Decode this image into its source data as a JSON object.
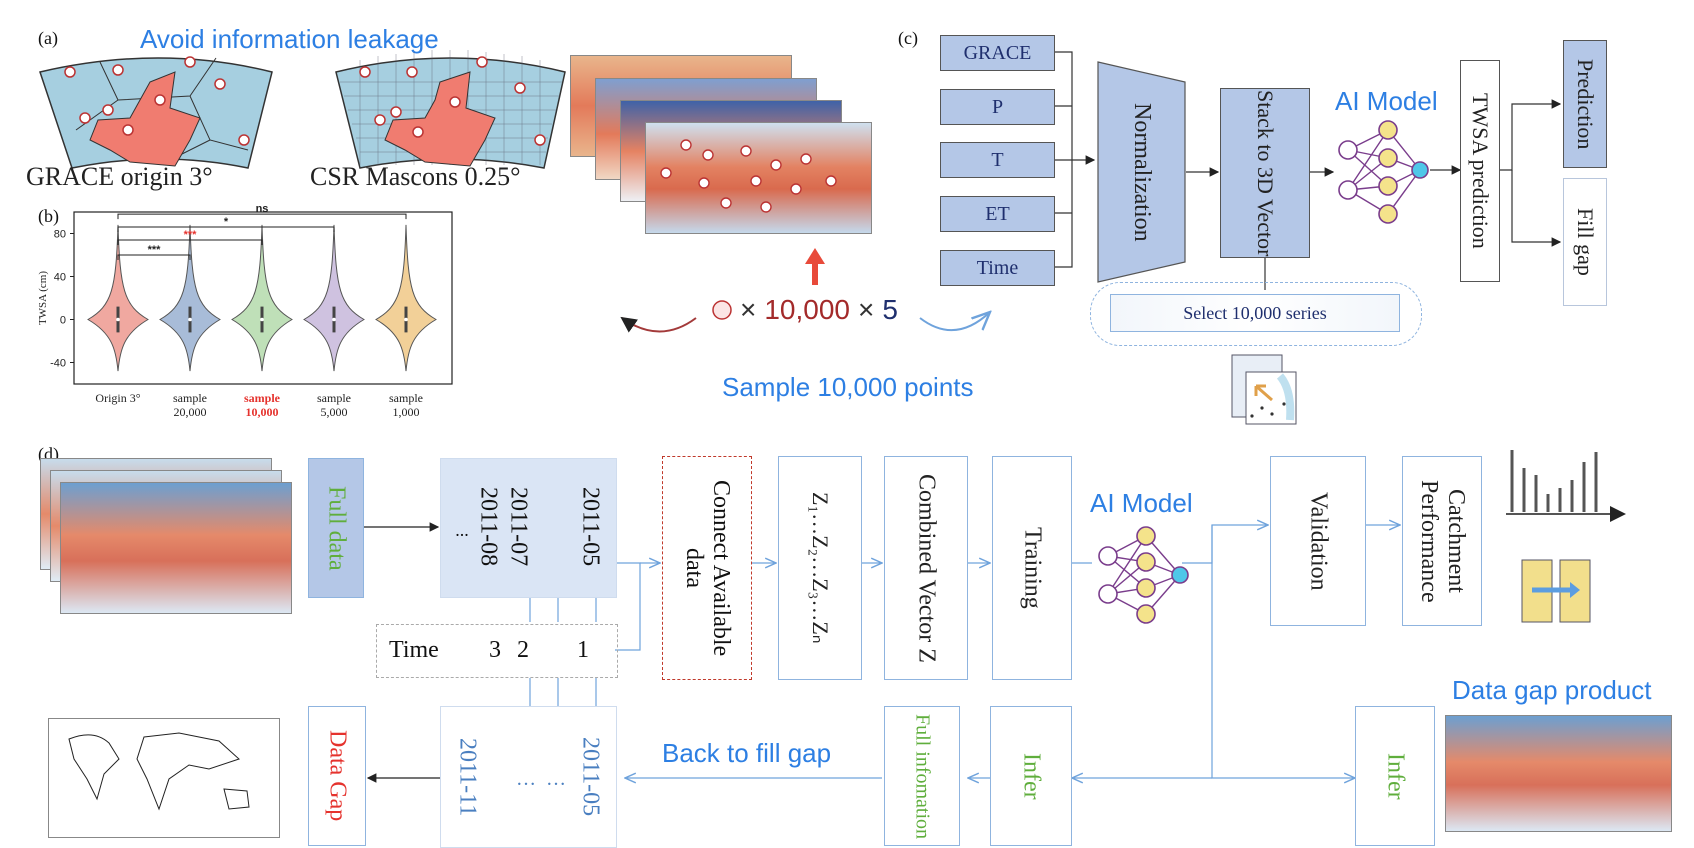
{
  "panel_a": {
    "letter": "(a)",
    "title": "Avoid information leakage",
    "left_label": "GRACE origin 3°",
    "right_label": "CSR Mascons 0.25°"
  },
  "panel_b": {
    "letter": "(b)",
    "chart_data": {
      "type": "violin",
      "ylabel": "TWSA (cm)",
      "yticks": [
        -40,
        0,
        40,
        80
      ],
      "categories": [
        "Origin 3°",
        "sample 20,000",
        "sample 10,000",
        "sample 5,000",
        "sample 1,000"
      ],
      "category_lines": [
        [
          "Origin 3°"
        ],
        [
          "sample",
          "20,000"
        ],
        [
          "sample",
          "10,000"
        ],
        [
          "sample",
          "5,000"
        ],
        [
          "sample",
          "1,000"
        ]
      ],
      "highlight_category": 2,
      "colors": [
        "#f0a8a0",
        "#a8bcd8",
        "#bfe0b8",
        "#cfc2e0",
        "#f2d098"
      ],
      "significance": [
        {
          "from": 0,
          "to": 1,
          "label": "***"
        },
        {
          "from": 0,
          "to": 2,
          "label": "***",
          "color": "#e5322d"
        },
        {
          "from": 0,
          "to": 3,
          "label": "*"
        },
        {
          "from": 0,
          "to": 4,
          "label": "ns"
        }
      ]
    }
  },
  "sampling": {
    "formula_times": "×",
    "formula_n": "10,000",
    "formula_times2": "×",
    "formula_k": "5",
    "caption": "Sample 10,000 points"
  },
  "panel_c": {
    "letter": "(c)",
    "inputs": [
      "GRACE",
      "P",
      "T",
      "ET",
      "Time"
    ],
    "normalization": "Normalization",
    "stack": "Stack to 3D Vector",
    "ai_model": "AI Model",
    "twsa": "TWSA prediction",
    "prediction": "Prediction",
    "fill_gap": "Fill gap",
    "select": "Select 10,000 series"
  },
  "panel_d": {
    "letter": "(d)",
    "full_data": "Full data",
    "dates_top": [
      "2011-05",
      "2011-07",
      "2011-08",
      "..."
    ],
    "time_label": "Time",
    "time_nums": [
      "3",
      "2",
      "1"
    ],
    "connect": "Connect Available data",
    "z_seq": "Z₁…Z₂…Z₃…Zₙ",
    "combined": "Combined Vector Z",
    "training": "Training",
    "ai_model": "AI Model",
    "validation": "Validation",
    "catchment": "Catchment Performance",
    "data_gap_product": "Data gap product",
    "infer": "Infer",
    "full_info": "Full infomation",
    "back": "Back to fill gap",
    "dates_bottom": [
      "2011-05",
      "…",
      "…",
      "2011-11"
    ],
    "data_gap": "Data Gap"
  }
}
